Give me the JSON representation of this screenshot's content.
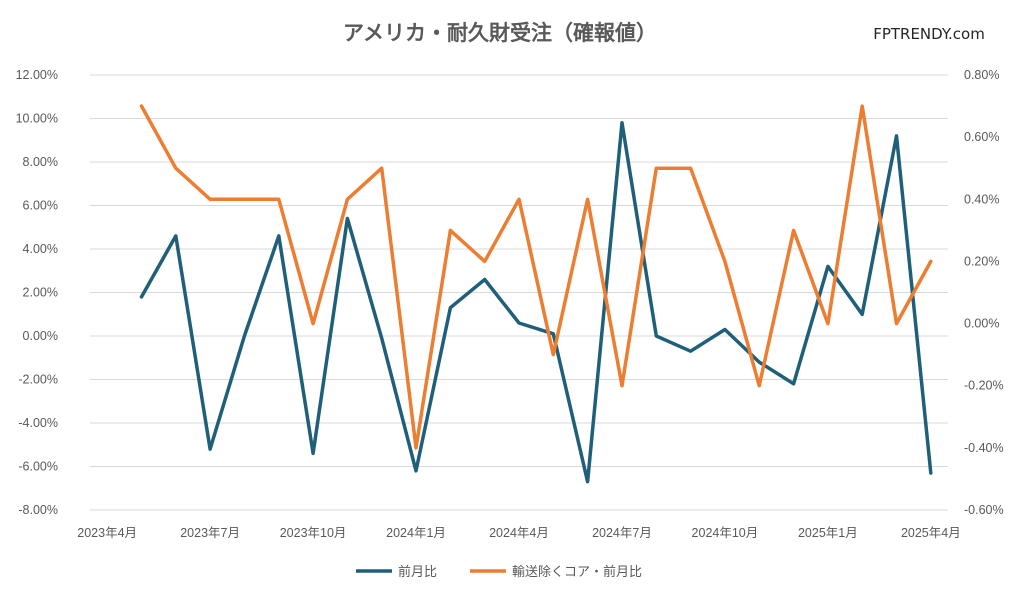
{
  "title": "アメリカ・耐久財受注（確報値）",
  "brand": "FPTRENDY.com",
  "chart_data": {
    "type": "line",
    "title": "アメリカ・耐久財受注（確報値）",
    "x": [
      "2023年4月",
      "2023年5月",
      "2023年6月",
      "2023年7月",
      "2023年8月",
      "2023年9月",
      "2023年10月",
      "2023年11月",
      "2023年12月",
      "2024年1月",
      "2024年2月",
      "2024年3月",
      "2024年4月",
      "2024年5月",
      "2024年6月",
      "2024年7月",
      "2024年8月",
      "2024年9月",
      "2024年10月",
      "2024年11月",
      "2024年12月",
      "2025年1月",
      "2025年2月",
      "2025年3月",
      "2025年4月"
    ],
    "x_tick_labels": [
      "2023年4月",
      "2023年7月",
      "2023年10月",
      "2024年1月",
      "2024年4月",
      "2024年7月",
      "2024年10月",
      "2025年1月",
      "2025年4月"
    ],
    "y_left": {
      "ylim": [
        -8,
        12
      ],
      "ticks": [
        "12.00%",
        "10.00%",
        "8.00%",
        "6.00%",
        "4.00%",
        "2.00%",
        "0.00%",
        "-2.00%",
        "-4.00%",
        "-6.00%",
        "-8.00%"
      ]
    },
    "y_right": {
      "ylim": [
        -0.6,
        0.8
      ],
      "ticks": [
        "0.80%",
        "0.60%",
        "0.40%",
        "0.20%",
        "0.00%",
        "-0.20%",
        "-0.40%",
        "-0.60%"
      ]
    },
    "grid": true,
    "legend_position": "bottom",
    "series": [
      {
        "name": "前月比",
        "axis": "left",
        "color": "#1f5f7a",
        "values": [
          null,
          1.8,
          4.6,
          -5.2,
          0.0,
          4.6,
          -5.4,
          5.4,
          -0.1,
          -6.2,
          1.3,
          2.6,
          0.6,
          0.1,
          -6.7,
          9.8,
          0.0,
          -0.7,
          0.3,
          -1.2,
          -2.2,
          3.2,
          1.0,
          9.2,
          -6.3
        ]
      },
      {
        "name": "輸送除くコア・前月比",
        "axis": "right",
        "color": "#ed7d31",
        "values": [
          null,
          0.7,
          0.5,
          0.4,
          0.4,
          0.4,
          0.0,
          0.4,
          0.5,
          -0.4,
          0.3,
          0.2,
          0.4,
          -0.1,
          0.4,
          -0.2,
          0.5,
          0.5,
          0.2,
          -0.2,
          0.3,
          0.0,
          0.7,
          0.0,
          0.2
        ]
      }
    ]
  }
}
